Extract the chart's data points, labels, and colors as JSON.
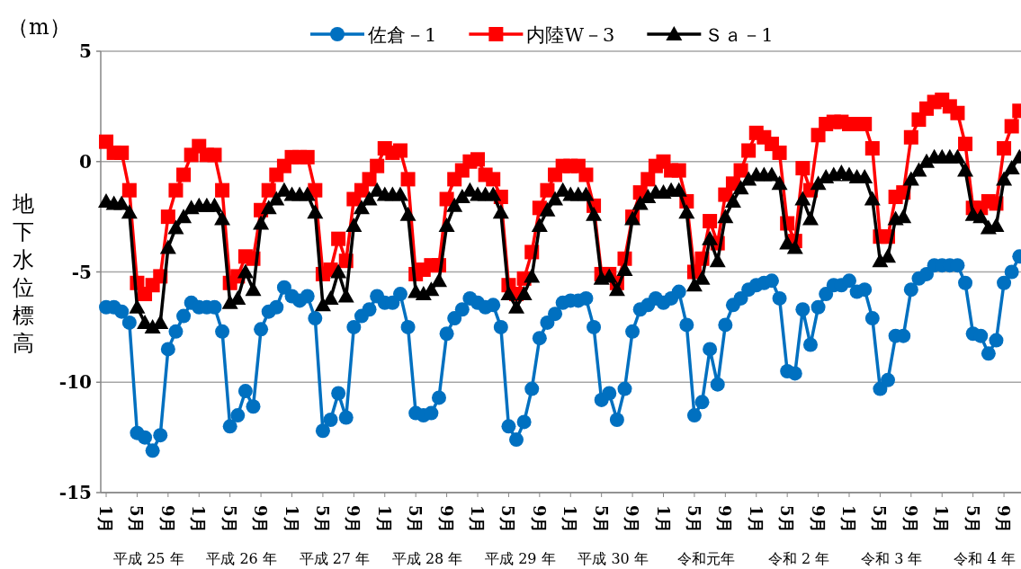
{
  "chart_data": {
    "type": "line",
    "ylabel": "地下水位標高",
    "annotations": [
      "（m）",
      "平成 25 年",
      "平成 26 年",
      "平成 27 年",
      "平成 28 年",
      "平成 29 年",
      "平成 30 年",
      "令和元年",
      "令和 2 年",
      "令和 3 年",
      "令和 4 年"
    ],
    "categories": [
      "1月",
      null,
      null,
      null,
      "5月",
      null,
      null,
      null,
      "9月",
      null,
      null,
      null,
      "1月",
      null,
      null,
      null,
      "5月",
      null,
      null,
      null,
      "9月",
      null,
      null,
      null,
      "1月",
      null,
      null,
      null,
      "5月",
      null,
      null,
      null,
      "9月",
      null,
      null,
      null,
      "1月",
      null,
      null,
      null,
      "5月",
      null,
      null,
      null,
      "9月",
      null,
      null,
      null,
      "1月",
      null,
      null,
      null,
      "5月",
      null,
      null,
      null,
      "9月",
      null,
      null,
      null,
      "1月",
      null,
      null,
      null,
      "5月",
      null,
      null,
      null,
      "9月",
      null,
      null,
      null,
      "1月",
      null,
      null,
      null,
      "5月",
      null,
      null,
      null,
      "9月",
      null,
      null,
      null,
      "1月",
      null,
      null,
      null,
      "5月",
      null,
      null,
      null,
      "9月",
      null,
      null,
      null,
      "1月",
      null,
      null,
      null,
      "5月",
      null,
      null,
      null,
      "9月",
      null,
      null,
      null,
      "1月",
      null,
      null,
      null,
      "5月",
      null,
      null,
      null,
      "9月",
      null,
      null
    ],
    "series": [
      {
        "name": "佐倉－1",
        "color": "#0070c0",
        "marker": "circle",
        "values": [
          -6.6,
          -6.6,
          -6.8,
          -7.3,
          -12.3,
          -12.5,
          -13.1,
          -12.4,
          -8.5,
          -7.7,
          -7.0,
          -6.4,
          -6.6,
          -6.6,
          -6.6,
          -7.7,
          -12.0,
          -11.5,
          -10.4,
          -11.1,
          -7.6,
          -6.8,
          -6.6,
          -5.7,
          -6.1,
          -6.3,
          -6.1,
          -7.1,
          -12.2,
          -11.7,
          -10.5,
          -11.6,
          -7.5,
          -7.0,
          -6.7,
          -6.1,
          -6.4,
          -6.4,
          -6.0,
          -7.5,
          -11.4,
          -11.5,
          -11.4,
          -10.7,
          -7.8,
          -7.1,
          -6.7,
          -6.2,
          -6.4,
          -6.6,
          -6.5,
          -7.5,
          -12.0,
          -12.6,
          -11.8,
          -10.3,
          -8.0,
          -7.3,
          -6.9,
          -6.4,
          -6.3,
          -6.3,
          -6.2,
          -7.5,
          -10.8,
          -10.5,
          -11.7,
          -10.3,
          -7.7,
          -6.7,
          -6.5,
          -6.2,
          -6.4,
          -6.2,
          -5.9,
          -7.4,
          -11.5,
          -10.9,
          -8.5,
          -10.1,
          -7.4,
          -6.5,
          -6.2,
          -5.8,
          -5.6,
          -5.5,
          -5.4,
          -6.2,
          -9.5,
          -9.6,
          -6.7,
          -8.3,
          -6.6,
          -6.0,
          -5.6,
          -5.6,
          -5.4,
          -5.9,
          -5.8,
          -7.1,
          -10.3,
          -9.9,
          -7.9,
          -7.9,
          -5.8,
          -5.3,
          -5.1,
          -4.7,
          -4.7,
          -4.7,
          -4.7,
          -5.5,
          -7.8,
          -7.9,
          -8.7,
          -8.1,
          -5.5,
          -5.0,
          -4.3
        ]
      },
      {
        "name": "内陸W－3",
        "color": "#ff0000",
        "marker": "square",
        "values": [
          0.9,
          0.4,
          0.4,
          -1.3,
          -5.5,
          -6.0,
          -5.6,
          -5.2,
          -2.5,
          -1.3,
          -0.6,
          0.3,
          0.7,
          0.3,
          0.3,
          -1.3,
          -5.5,
          -5.2,
          -4.3,
          -4.4,
          -2.2,
          -1.3,
          -0.6,
          -0.2,
          0.2,
          0.2,
          0.2,
          -1.3,
          -5.1,
          -4.9,
          -3.5,
          -4.5,
          -1.7,
          -1.3,
          -0.8,
          -0.2,
          0.6,
          0.4,
          0.5,
          -0.8,
          -5.1,
          -4.9,
          -4.7,
          -4.7,
          -1.7,
          -0.8,
          -0.4,
          0.0,
          0.1,
          -0.6,
          -0.8,
          -1.6,
          -5.6,
          -6.0,
          -5.3,
          -4.1,
          -2.1,
          -1.3,
          -0.6,
          -0.2,
          -0.2,
          -0.2,
          -0.6,
          -2.0,
          -5.1,
          -5.1,
          -5.5,
          -4.4,
          -2.5,
          -1.4,
          -0.8,
          -0.2,
          0.0,
          -0.4,
          -0.4,
          -1.8,
          -5.0,
          -4.4,
          -2.7,
          -3.7,
          -1.5,
          -1.0,
          -0.4,
          0.5,
          1.3,
          1.1,
          0.8,
          0.4,
          -2.8,
          -3.6,
          -0.3,
          -1.3,
          1.2,
          1.7,
          1.8,
          1.8,
          1.7,
          1.7,
          1.7,
          0.6,
          -3.4,
          -3.4,
          -1.6,
          -1.4,
          1.1,
          1.9,
          2.4,
          2.7,
          2.8,
          2.5,
          2.2,
          0.8,
          -2.1,
          -2.1,
          -1.8,
          -1.9,
          0.6,
          1.6,
          2.3
        ]
      },
      {
        "name": "Ｓａ－1",
        "color": "#000000",
        "marker": "triangle",
        "values": [
          -1.8,
          -1.9,
          -1.9,
          -2.3,
          -6.6,
          -7.3,
          -7.5,
          -7.3,
          -3.9,
          -3.0,
          -2.5,
          -2.1,
          -2.0,
          -2.0,
          -2.0,
          -2.6,
          -6.4,
          -6.2,
          -5.0,
          -5.8,
          -2.8,
          -2.1,
          -1.7,
          -1.3,
          -1.5,
          -1.5,
          -1.5,
          -2.3,
          -6.5,
          -6.2,
          -5.0,
          -6.1,
          -2.9,
          -2.1,
          -1.7,
          -1.3,
          -1.5,
          -1.5,
          -1.5,
          -2.4,
          -5.9,
          -6.0,
          -5.8,
          -5.4,
          -2.9,
          -2.0,
          -1.6,
          -1.3,
          -1.5,
          -1.5,
          -1.5,
          -2.3,
          -6.0,
          -6.6,
          -6.0,
          -5.2,
          -2.9,
          -2.2,
          -1.7,
          -1.3,
          -1.5,
          -1.5,
          -1.5,
          -2.4,
          -5.3,
          -5.2,
          -5.8,
          -4.9,
          -2.6,
          -1.9,
          -1.6,
          -1.4,
          -1.4,
          -1.3,
          -1.3,
          -2.3,
          -5.6,
          -5.3,
          -3.5,
          -4.5,
          -2.5,
          -1.8,
          -1.2,
          -0.8,
          -0.6,
          -0.6,
          -0.6,
          -1.0,
          -3.7,
          -3.9,
          -1.7,
          -2.6,
          -1.0,
          -0.7,
          -0.6,
          -0.5,
          -0.6,
          -0.7,
          -0.7,
          -1.7,
          -4.5,
          -4.3,
          -2.6,
          -2.5,
          -0.8,
          -0.4,
          0.0,
          0.2,
          0.2,
          0.2,
          0.2,
          -0.4,
          -2.4,
          -2.5,
          -3.0,
          -2.9,
          -0.8,
          -0.3,
          0.2
        ]
      }
    ],
    "ylim": [
      -15,
      5
    ],
    "yticks": [
      -15,
      -10,
      -5,
      0,
      5
    ],
    "grid": "y",
    "legend": "top",
    "line_style": "solid"
  }
}
